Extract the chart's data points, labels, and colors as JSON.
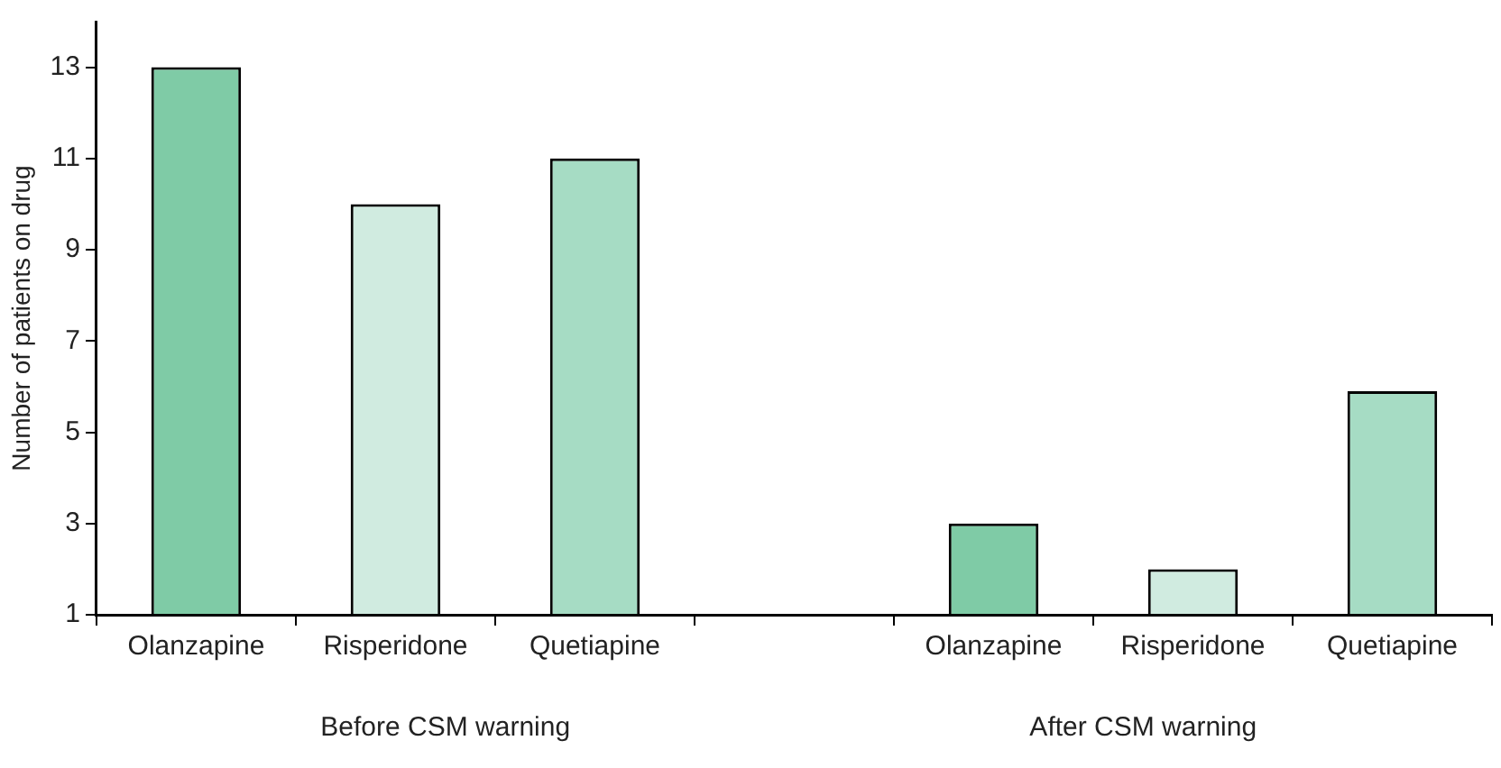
{
  "chart_data": {
    "type": "bar",
    "ylabel": "Number of patients on drug",
    "categories": [
      "Olanzapine",
      "Risperidone",
      "Quetiapine",
      null,
      "Olanzapine",
      "Risperidone",
      "Quetiapine"
    ],
    "values": [
      13,
      10,
      11,
      null,
      3,
      2,
      5.9
    ],
    "colors": [
      "#7fcba6",
      "#d0ebe0",
      "#a6dcc4",
      "#ffffff",
      "#7fcba6",
      "#d0ebe0",
      "#a6dcc4"
    ],
    "ylim": [
      1,
      14
    ],
    "yticks": [
      1,
      3,
      5,
      7,
      9,
      11,
      13
    ],
    "grid": false,
    "legend": false,
    "annotations": [
      "Before CSM warning",
      "After CSM warning"
    ]
  }
}
